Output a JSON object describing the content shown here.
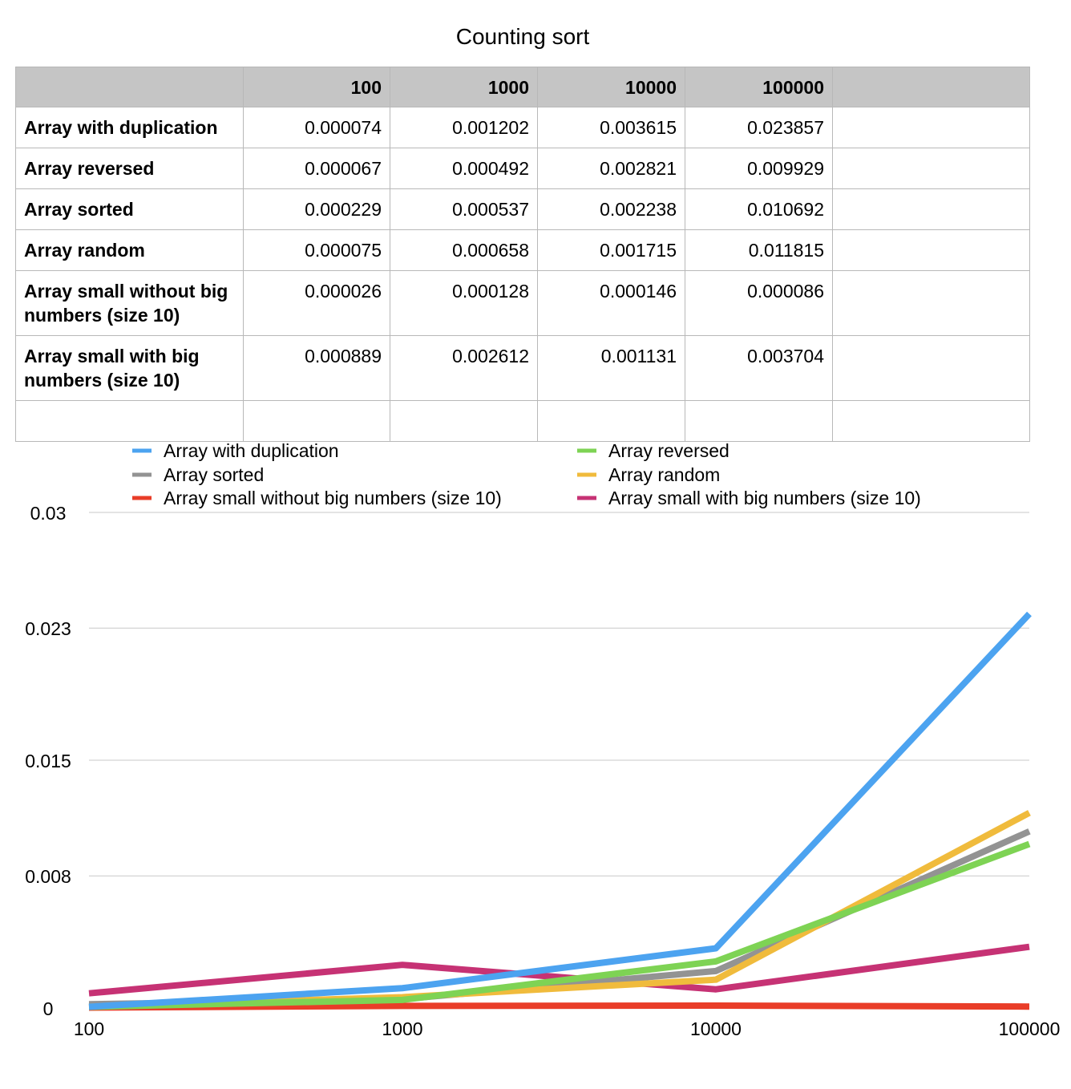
{
  "chart_data": {
    "type": "line",
    "title": "Counting sort",
    "table": {
      "header": [
        "",
        "100",
        "1000",
        "10000",
        "100000",
        ""
      ],
      "rows": [
        {
          "label": "Array with duplication",
          "values": [
            "0.000074",
            "0.001202",
            "0.003615",
            "0.023857"
          ]
        },
        {
          "label": "Array reversed",
          "values": [
            "0.000067",
            "0.000492",
            "0.002821",
            "0.009929"
          ]
        },
        {
          "label": "Array sorted",
          "values": [
            "0.000229",
            "0.000537",
            "0.002238",
            "0.010692"
          ]
        },
        {
          "label": "Array random",
          "values": [
            "0.000075",
            "0.000658",
            "0.001715",
            "0.011815"
          ]
        },
        {
          "label": "Array small without big numbers (size 10)",
          "values": [
            "0.000026",
            "0.000128",
            "0.000146",
            "0.000086"
          ]
        },
        {
          "label": "Array small with big numbers (size 10)",
          "values": [
            "0.000889",
            "0.002612",
            "0.001131",
            "0.003704"
          ]
        },
        {
          "label": "",
          "values": [
            "",
            "",
            "",
            ""
          ]
        }
      ]
    },
    "categories": [
      "100",
      "1000",
      "10000",
      "100000"
    ],
    "series": [
      {
        "name": "Array with duplication",
        "color": "#4ca3f0",
        "values": [
          7.4e-05,
          0.001202,
          0.003615,
          0.023857
        ]
      },
      {
        "name": "Array reversed",
        "color": "#7ed354",
        "values": [
          6.7e-05,
          0.000492,
          0.002821,
          0.009929
        ]
      },
      {
        "name": "Array sorted",
        "color": "#939393",
        "values": [
          0.000229,
          0.000537,
          0.002238,
          0.010692
        ]
      },
      {
        "name": "Array random",
        "color": "#f0bb3c",
        "values": [
          7.5e-05,
          0.000658,
          0.001715,
          0.011815
        ]
      },
      {
        "name": "Array small without big numbers (size 10)",
        "color": "#e93d28",
        "values": [
          2.6e-05,
          0.000128,
          0.000146,
          8.6e-05
        ]
      },
      {
        "name": "Array small with big numbers (size 10)",
        "color": "#c63274",
        "values": [
          0.000889,
          0.002612,
          0.001131,
          0.003704
        ]
      }
    ],
    "yticks": [
      "0",
      "0.008",
      "0.015",
      "0.023",
      "0.03"
    ],
    "ylim": [
      0,
      0.03
    ],
    "grid": true,
    "legend_position": "top"
  }
}
